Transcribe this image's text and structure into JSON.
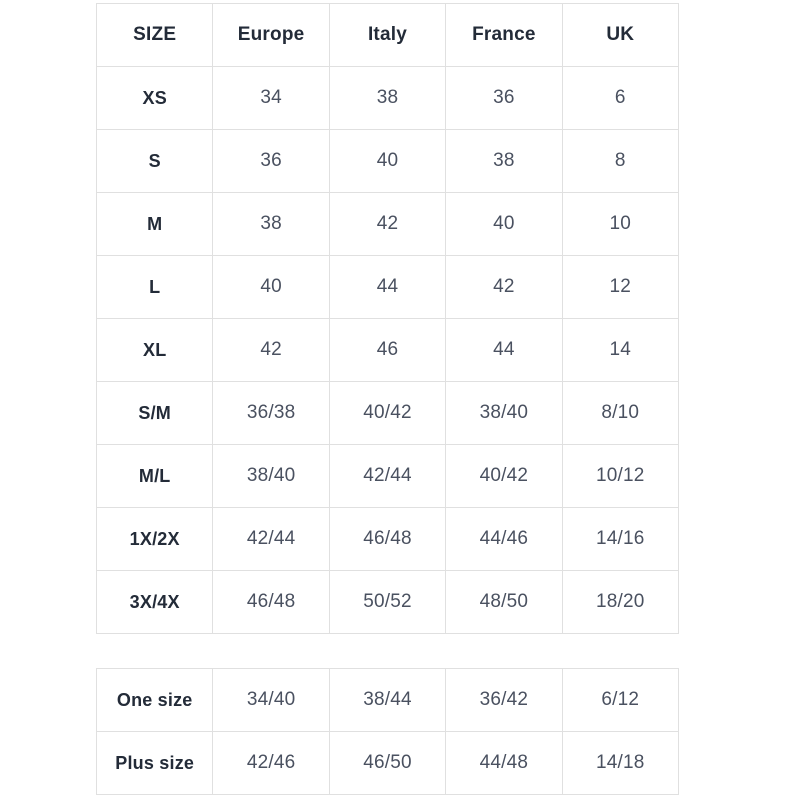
{
  "colors": {
    "background": "#ffffff",
    "border": "#e0e0e0",
    "header_text": "#232b38",
    "value_text": "#4a5160"
  },
  "main_table": {
    "headers": [
      "SIZE",
      "Europe",
      "Italy",
      "France",
      "UK"
    ],
    "rows": [
      {
        "label": "XS",
        "values": [
          "34",
          "38",
          "36",
          "6"
        ]
      },
      {
        "label": "S",
        "values": [
          "36",
          "40",
          "38",
          "8"
        ]
      },
      {
        "label": "M",
        "values": [
          "38",
          "42",
          "40",
          "10"
        ]
      },
      {
        "label": "L",
        "values": [
          "40",
          "44",
          "42",
          "12"
        ]
      },
      {
        "label": "XL",
        "values": [
          "42",
          "46",
          "44",
          "14"
        ]
      },
      {
        "label": "S/M",
        "values": [
          "36/38",
          "40/42",
          "38/40",
          "8/10"
        ]
      },
      {
        "label": "M/L",
        "values": [
          "38/40",
          "42/44",
          "40/42",
          "10/12"
        ]
      },
      {
        "label": "1X/2X",
        "values": [
          "42/44",
          "46/48",
          "44/46",
          "14/16"
        ]
      },
      {
        "label": "3X/4X",
        "values": [
          "46/48",
          "50/52",
          "48/50",
          "18/20"
        ]
      }
    ]
  },
  "special_table": {
    "rows": [
      {
        "label": "One size",
        "values": [
          "34/40",
          "38/44",
          "36/42",
          "6/12"
        ]
      },
      {
        "label": "Plus size",
        "values": [
          "42/46",
          "46/50",
          "44/48",
          "14/18"
        ]
      }
    ]
  }
}
